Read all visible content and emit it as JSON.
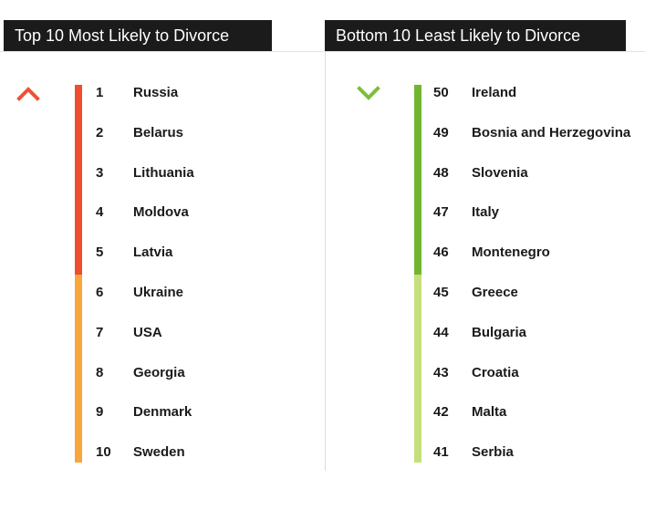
{
  "top_panel": {
    "title": "Top 10 Most Likely to Divorce",
    "icon": "chevron-up-icon",
    "icon_color": "#ef5136",
    "bar_colors": [
      "#f04d2e",
      "#f7a63a"
    ],
    "items": [
      {
        "rank": "1",
        "country": "Russia"
      },
      {
        "rank": "2",
        "country": "Belarus"
      },
      {
        "rank": "3",
        "country": "Lithuania"
      },
      {
        "rank": "4",
        "country": "Moldova"
      },
      {
        "rank": "5",
        "country": "Latvia"
      },
      {
        "rank": "6",
        "country": "Ukraine"
      },
      {
        "rank": "7",
        "country": "USA"
      },
      {
        "rank": "8",
        "country": "Georgia"
      },
      {
        "rank": "9",
        "country": "Denmark"
      },
      {
        "rank": "10",
        "country": "Sweden"
      }
    ]
  },
  "bottom_panel": {
    "title": "Bottom 10 Least Likely to Divorce",
    "icon": "chevron-down-icon",
    "icon_color": "#7dbe3a",
    "bar_colors": [
      "#72b52f",
      "#c5e07a"
    ],
    "items": [
      {
        "rank": "50",
        "country": "Ireland"
      },
      {
        "rank": "49",
        "country": "Bosnia and Herzegovina"
      },
      {
        "rank": "48",
        "country": "Slovenia"
      },
      {
        "rank": "47",
        "country": "Italy"
      },
      {
        "rank": "46",
        "country": "Montenegro"
      },
      {
        "rank": "45",
        "country": "Greece"
      },
      {
        "rank": "44",
        "country": "Bulgaria"
      },
      {
        "rank": "43",
        "country": "Croatia"
      },
      {
        "rank": "42",
        "country": "Malta"
      },
      {
        "rank": "41",
        "country": "Serbia"
      }
    ]
  }
}
